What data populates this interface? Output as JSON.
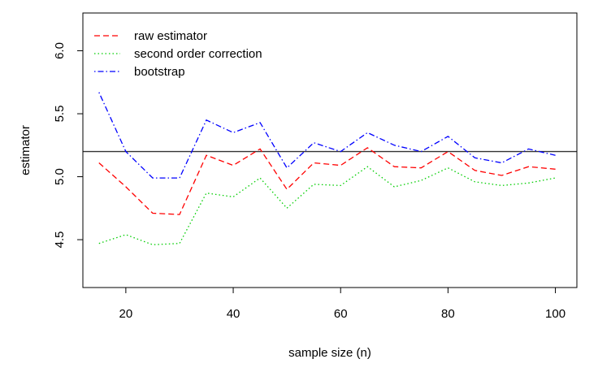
{
  "chart_data": {
    "type": "line",
    "title": "",
    "xlabel": "sample size (n)",
    "ylabel": "estimator",
    "xlim": [
      12,
      104
    ],
    "ylim": [
      4.12,
      6.3
    ],
    "xticks": [
      20,
      40,
      60,
      80,
      100
    ],
    "yticks": [
      4.5,
      5.0,
      5.5,
      6.0
    ],
    "xtick_labels": [
      "20",
      "40",
      "60",
      "80",
      "100"
    ],
    "ytick_labels": [
      "4.5",
      "5.0",
      "5.5",
      "6.0"
    ],
    "grid": false,
    "legend_position": "top-left",
    "x": [
      15,
      20,
      25,
      30,
      35,
      40,
      45,
      50,
      55,
      60,
      65,
      70,
      75,
      80,
      85,
      90,
      95,
      100
    ],
    "series": [
      {
        "name": "raw estimator",
        "color": "#ff0000",
        "dash": "dashed",
        "values": [
          5.11,
          4.92,
          4.71,
          4.7,
          5.17,
          5.09,
          5.22,
          4.9,
          5.11,
          5.09,
          5.23,
          5.08,
          5.07,
          5.2,
          5.05,
          5.01,
          5.08,
          5.06
        ]
      },
      {
        "name": "second order correction",
        "color": "#00cd00",
        "dash": "dotted",
        "values": [
          4.47,
          4.54,
          4.46,
          4.47,
          4.87,
          4.84,
          4.99,
          4.75,
          4.94,
          4.93,
          5.08,
          4.92,
          4.97,
          5.07,
          4.96,
          4.93,
          4.95,
          4.99
        ]
      },
      {
        "name": "bootstrap",
        "color": "#0000ff",
        "dash": "dotdash",
        "values": [
          5.67,
          5.2,
          4.99,
          4.99,
          5.45,
          5.35,
          5.43,
          5.07,
          5.27,
          5.2,
          5.35,
          5.25,
          5.2,
          5.32,
          5.15,
          5.11,
          5.22,
          5.17
        ]
      }
    ],
    "reference_line": {
      "y": 5.2,
      "color": "#333333"
    }
  }
}
